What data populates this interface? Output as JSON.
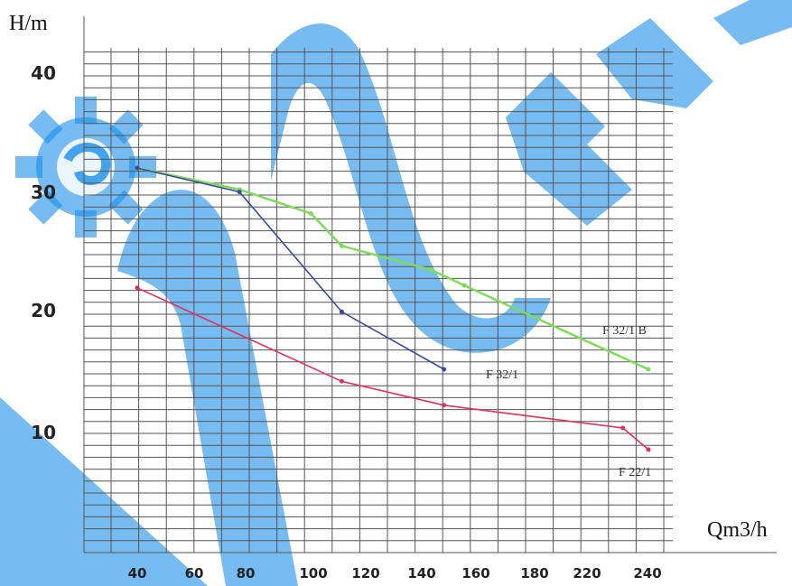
{
  "chart_data": {
    "type": "line",
    "ylabel": "H/m",
    "xlabel": "Qm3/h",
    "x_ticks": [
      "40",
      "60",
      "80",
      "100",
      "120",
      "140",
      "160",
      "180",
      "220",
      "240"
    ],
    "y_ticks": [
      "10",
      "20",
      "30",
      "40"
    ],
    "ylim": [
      0,
      44
    ],
    "grid": true,
    "series": [
      {
        "name": "F 32/1 B",
        "color": "#7fdc5a",
        "points": [
          [
            40,
            32
          ],
          [
            80,
            30.2
          ],
          [
            108,
            28.2
          ],
          [
            120,
            25.5
          ],
          [
            155,
            23.5
          ],
          [
            168,
            22.2
          ],
          [
            240,
            15.2
          ]
        ]
      },
      {
        "name": "F 32/1",
        "color": "#3a4aa0",
        "points": [
          [
            40,
            32
          ],
          [
            80,
            30
          ],
          [
            120,
            20
          ],
          [
            160,
            15.2
          ]
        ]
      },
      {
        "name": "F 22/1",
        "color": "#e0305a",
        "points": [
          [
            40,
            22
          ],
          [
            120,
            14.2
          ],
          [
            160,
            12.2
          ],
          [
            230,
            10.3
          ],
          [
            240,
            8.5
          ]
        ]
      }
    ]
  }
}
